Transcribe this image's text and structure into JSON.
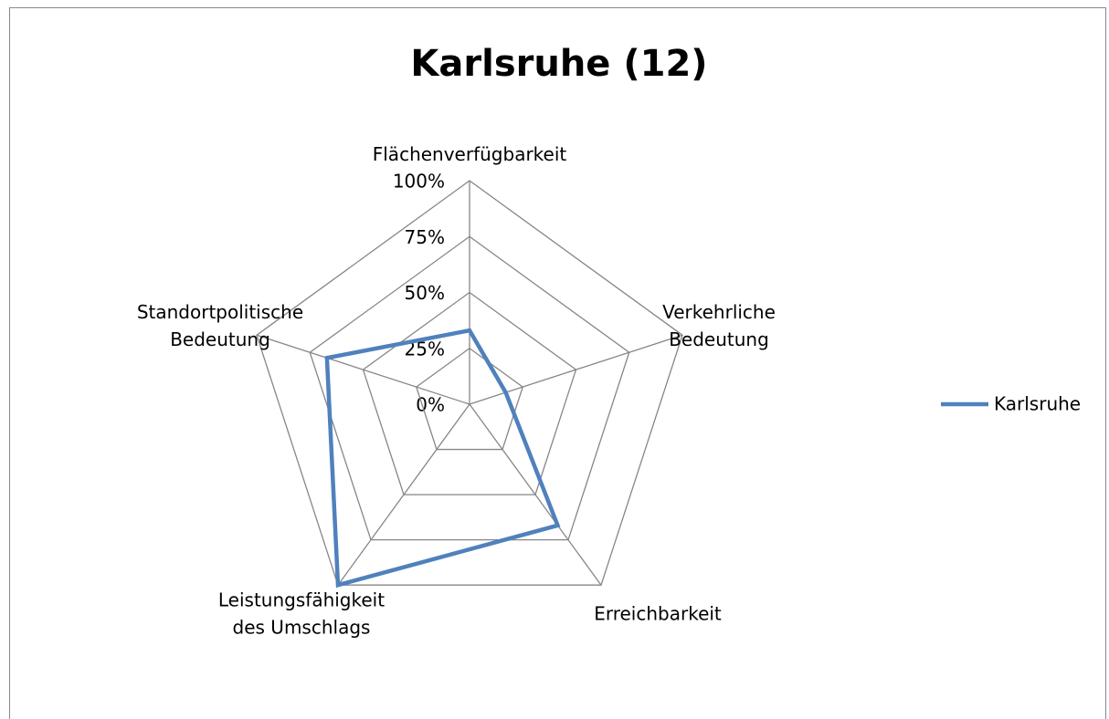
{
  "chart_data": {
    "type": "radar",
    "title": "Karlsruhe (12)",
    "categories": [
      "Flächenverfügbarkeit",
      "Verkehrliche Bedeutung",
      "Erreichbarkeit",
      "Leistungsfähigkeit des Umschlags",
      "Standortpolitische Bedeutung"
    ],
    "series": [
      {
        "name": "Karlsruhe",
        "color": "#4f81bd",
        "values": [
          33,
          17,
          67,
          100,
          67
        ]
      }
    ],
    "ylim": [
      0,
      100
    ],
    "yticks": [
      {
        "value": 0,
        "label": "0%"
      },
      {
        "value": 25,
        "label": "25%"
      },
      {
        "value": 50,
        "label": "50%"
      },
      {
        "value": 75,
        "label": "75%"
      },
      {
        "value": 100,
        "label": "100%"
      }
    ],
    "grid": true,
    "legend": "right"
  }
}
